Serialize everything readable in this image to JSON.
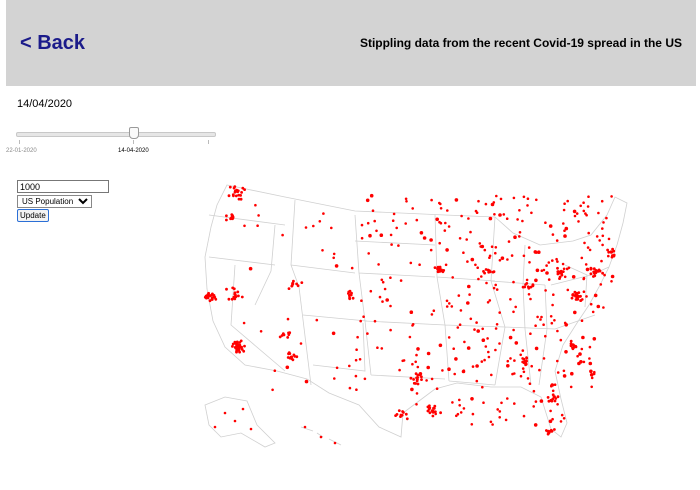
{
  "header": {
    "back_label": "< Back",
    "title": "Stippling data from the recent Covid-19 spread in the US"
  },
  "date": {
    "current": "14/04/2020"
  },
  "slider": {
    "start_label": "22-01-2020",
    "current_label": "14-04-2020"
  },
  "controls": {
    "dot_count_value": "1000",
    "dataset_selected": "US Population",
    "update_label": "Update"
  },
  "colors": {
    "dot": "#ff0000",
    "map_stroke": "#d0d0d0",
    "header_bg": "#d3d3d3",
    "back_link": "#1b1b8a"
  }
}
